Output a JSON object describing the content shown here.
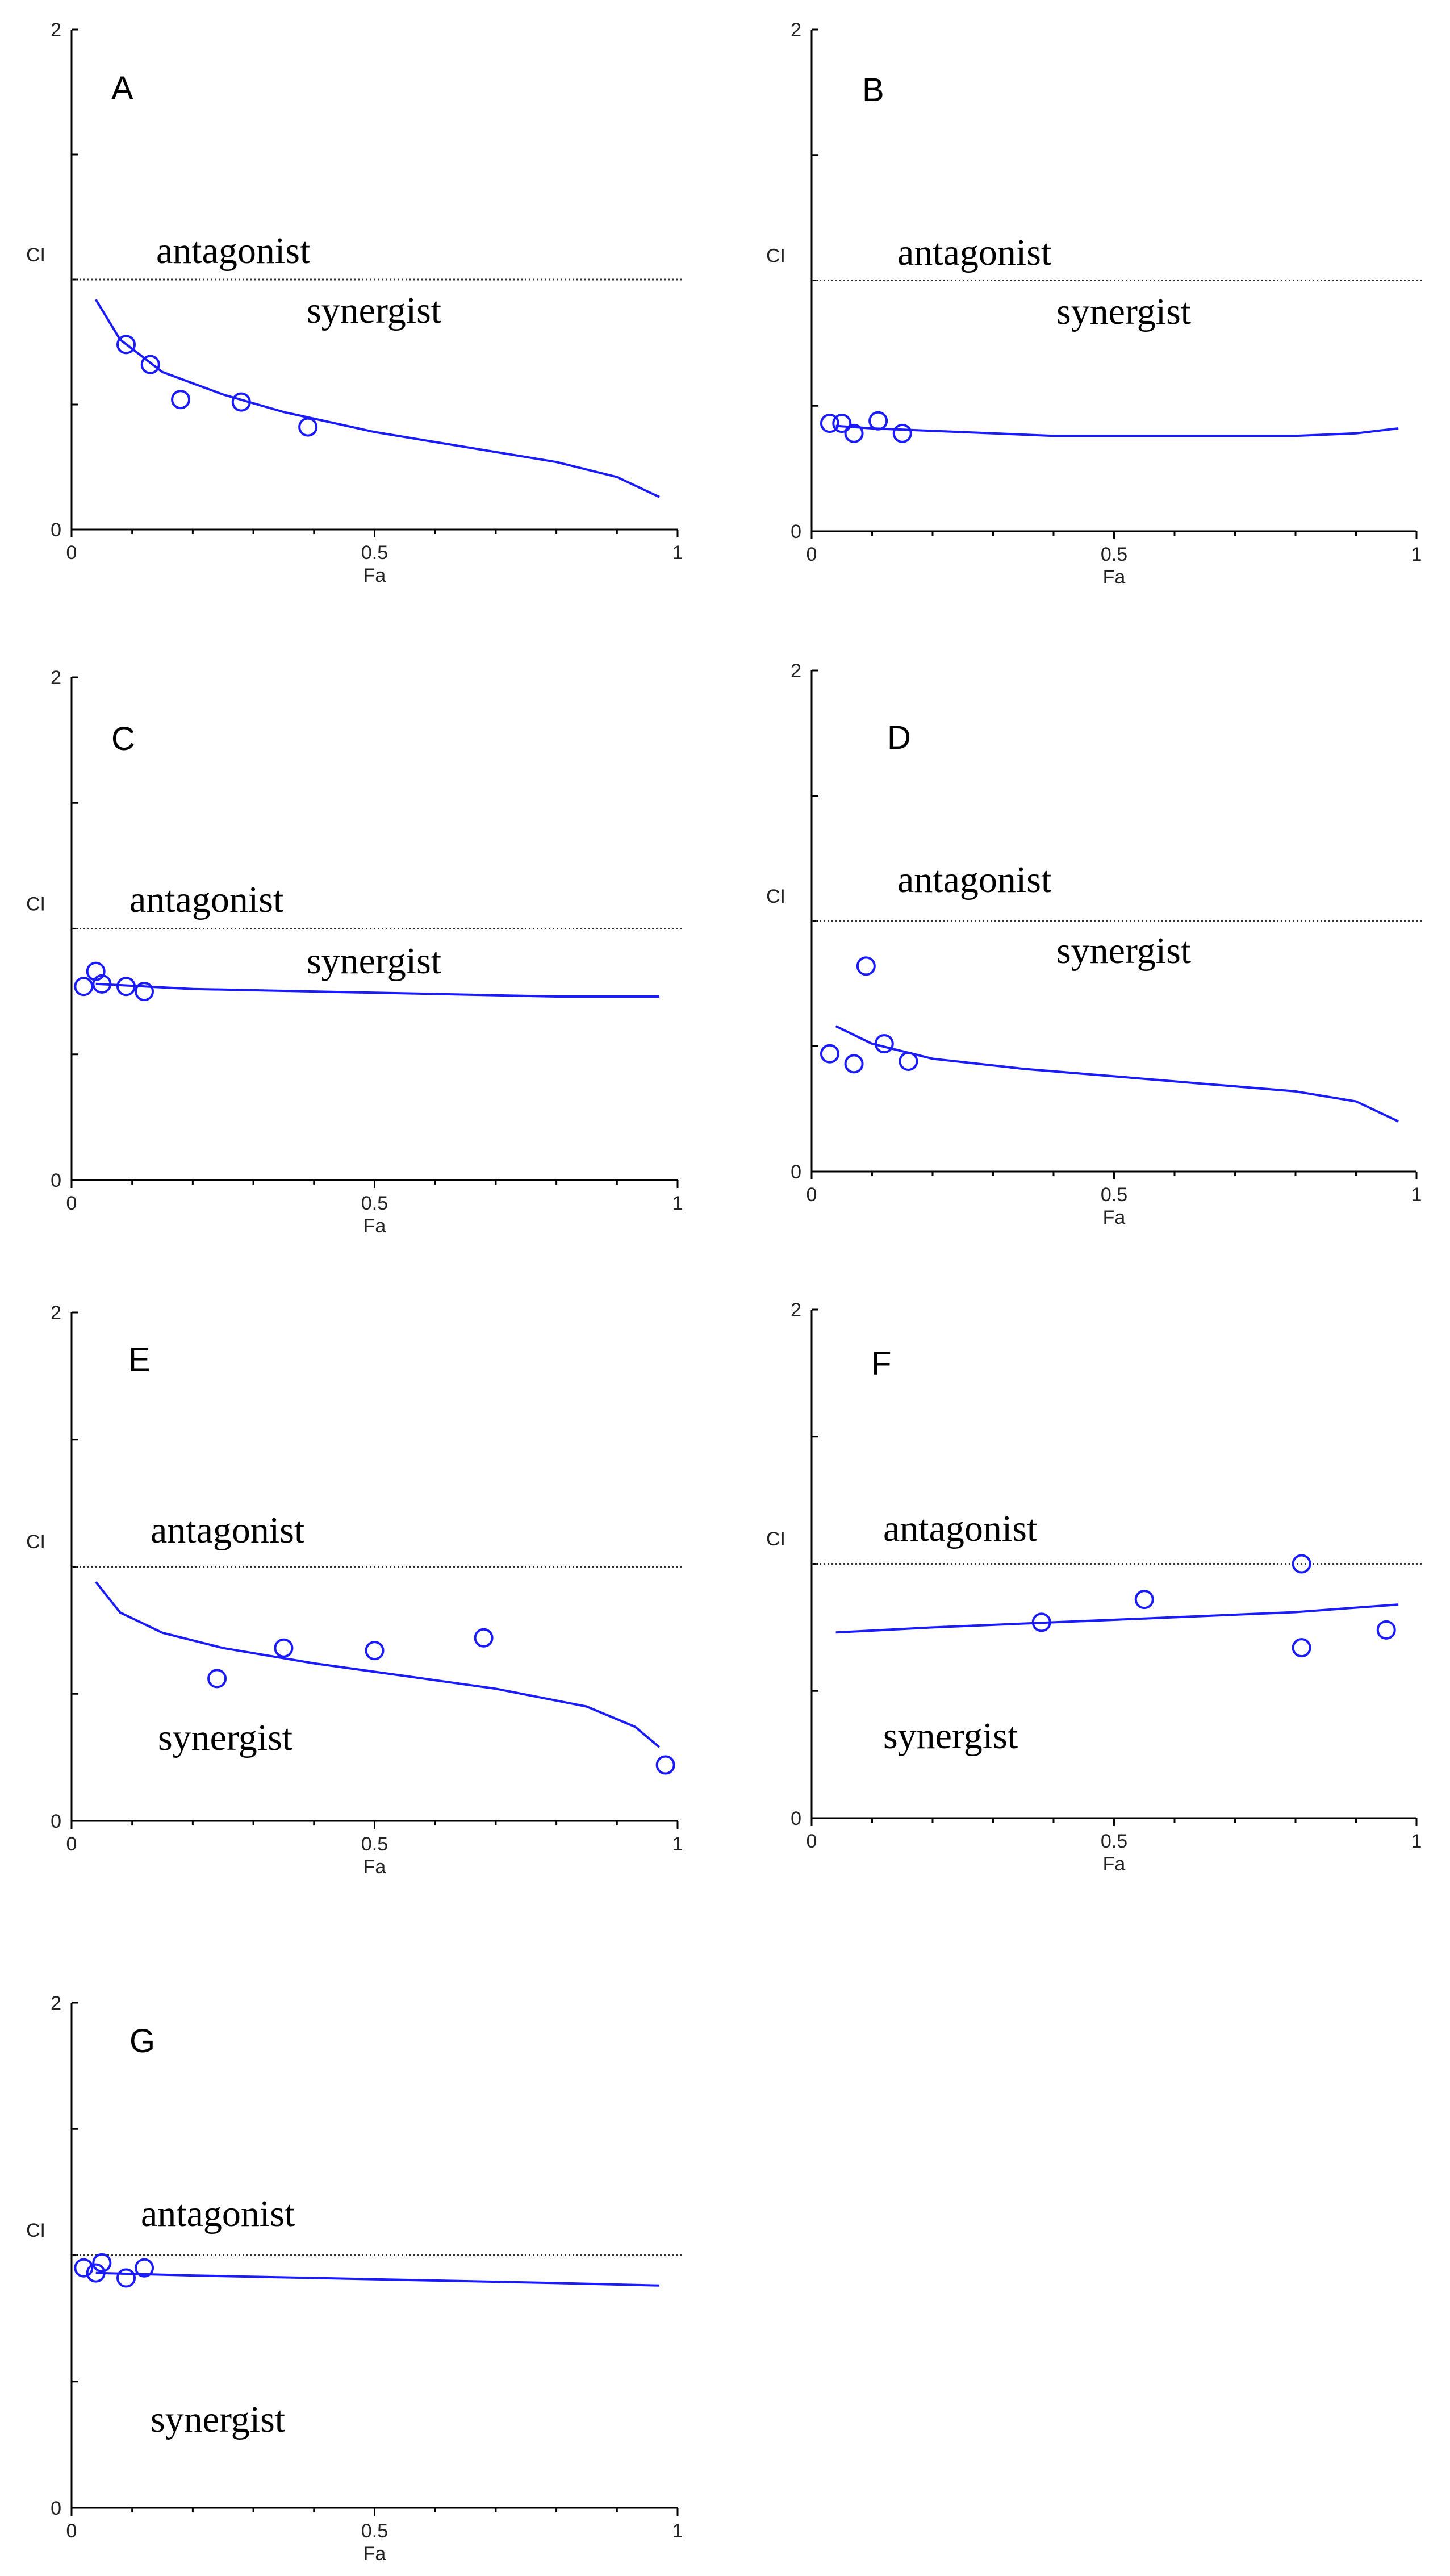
{
  "colors": {
    "curve": "#1a1aff",
    "axis": "#000000",
    "reference_line": "#333333"
  },
  "chart_data": [
    {
      "id": "A",
      "type": "scatter",
      "panel_label": "A",
      "xlabel": "Fa",
      "ylabel": "CI",
      "xlim": [
        0,
        1
      ],
      "ylim": [
        0,
        2
      ],
      "x_tick_labels": [
        "0",
        "0.5",
        "1"
      ],
      "y_tick_labels": [
        "0",
        "2"
      ],
      "reference_line_y": 1,
      "above_label": "antagonist",
      "below_label": "synergist",
      "points": [
        [
          0.09,
          0.74
        ],
        [
          0.13,
          0.66
        ],
        [
          0.18,
          0.52
        ],
        [
          0.28,
          0.51
        ],
        [
          0.39,
          0.41
        ]
      ],
      "curve": [
        [
          0.04,
          0.92
        ],
        [
          0.08,
          0.76
        ],
        [
          0.15,
          0.63
        ],
        [
          0.25,
          0.54
        ],
        [
          0.35,
          0.47
        ],
        [
          0.5,
          0.39
        ],
        [
          0.65,
          0.33
        ],
        [
          0.8,
          0.27
        ],
        [
          0.9,
          0.21
        ],
        [
          0.97,
          0.13
        ]
      ]
    },
    {
      "id": "B",
      "type": "scatter",
      "panel_label": "B",
      "xlabel": "Fa",
      "ylabel": "CI",
      "xlim": [
        0,
        1
      ],
      "ylim": [
        0,
        2
      ],
      "x_tick_labels": [
        "0",
        "0.5",
        "1"
      ],
      "y_tick_labels": [
        "0",
        "2"
      ],
      "reference_line_y": 1,
      "above_label": "antagonist",
      "below_label": "synergist",
      "points": [
        [
          0.03,
          0.43
        ],
        [
          0.05,
          0.43
        ],
        [
          0.07,
          0.39
        ],
        [
          0.11,
          0.44
        ],
        [
          0.15,
          0.39
        ]
      ],
      "curve": [
        [
          0.04,
          0.42
        ],
        [
          0.1,
          0.41
        ],
        [
          0.2,
          0.4
        ],
        [
          0.4,
          0.38
        ],
        [
          0.6,
          0.38
        ],
        [
          0.8,
          0.38
        ],
        [
          0.9,
          0.39
        ],
        [
          0.97,
          0.41
        ]
      ]
    },
    {
      "id": "C",
      "type": "scatter",
      "panel_label": "C",
      "xlabel": "Fa",
      "ylabel": "CI",
      "xlim": [
        0,
        1
      ],
      "ylim": [
        0,
        2
      ],
      "x_tick_labels": [
        "0",
        "0.5",
        "1"
      ],
      "y_tick_labels": [
        "0",
        "2"
      ],
      "reference_line_y": 1,
      "above_label": "antagonist",
      "below_label": "synergist",
      "points": [
        [
          0.02,
          0.77
        ],
        [
          0.04,
          0.83
        ],
        [
          0.05,
          0.78
        ],
        [
          0.09,
          0.77
        ],
        [
          0.12,
          0.75
        ]
      ],
      "curve": [
        [
          0.04,
          0.78
        ],
        [
          0.2,
          0.76
        ],
        [
          0.4,
          0.75
        ],
        [
          0.6,
          0.74
        ],
        [
          0.8,
          0.73
        ],
        [
          0.97,
          0.73
        ]
      ]
    },
    {
      "id": "D",
      "type": "scatter",
      "panel_label": "D",
      "xlabel": "Fa",
      "ylabel": "CI",
      "xlim": [
        0,
        1
      ],
      "ylim": [
        0,
        2
      ],
      "x_tick_labels": [
        "0",
        "0.5",
        "1"
      ],
      "y_tick_labels": [
        "0",
        "2"
      ],
      "reference_line_y": 1,
      "above_label": "antagonist",
      "below_label": "synergist",
      "points": [
        [
          0.09,
          0.82
        ],
        [
          0.03,
          0.47
        ],
        [
          0.07,
          0.43
        ],
        [
          0.12,
          0.51
        ],
        [
          0.16,
          0.44
        ]
      ],
      "curve": [
        [
          0.04,
          0.58
        ],
        [
          0.1,
          0.51
        ],
        [
          0.2,
          0.45
        ],
        [
          0.35,
          0.41
        ],
        [
          0.5,
          0.38
        ],
        [
          0.65,
          0.35
        ],
        [
          0.8,
          0.32
        ],
        [
          0.9,
          0.28
        ],
        [
          0.97,
          0.2
        ]
      ]
    },
    {
      "id": "E",
      "type": "scatter",
      "panel_label": "E",
      "xlabel": "Fa",
      "ylabel": "CI",
      "xlim": [
        0,
        1
      ],
      "ylim": [
        0,
        2
      ],
      "x_tick_labels": [
        "0",
        "0.5",
        "1"
      ],
      "y_tick_labels": [
        "0",
        "2"
      ],
      "reference_line_y": 1,
      "above_label": "antagonist",
      "below_label": "synergist",
      "points": [
        [
          0.24,
          0.56
        ],
        [
          0.35,
          0.68
        ],
        [
          0.5,
          0.67
        ],
        [
          0.68,
          0.72
        ],
        [
          0.98,
          0.22
        ]
      ],
      "curve": [
        [
          0.04,
          0.94
        ],
        [
          0.08,
          0.82
        ],
        [
          0.15,
          0.74
        ],
        [
          0.25,
          0.68
        ],
        [
          0.4,
          0.62
        ],
        [
          0.55,
          0.57
        ],
        [
          0.7,
          0.52
        ],
        [
          0.85,
          0.45
        ],
        [
          0.93,
          0.37
        ],
        [
          0.97,
          0.29
        ]
      ]
    },
    {
      "id": "F",
      "type": "scatter",
      "panel_label": "F",
      "xlabel": "Fa",
      "ylabel": "CI",
      "xlim": [
        0,
        1
      ],
      "ylim": [
        0,
        2
      ],
      "x_tick_labels": [
        "0",
        "0.5",
        "1"
      ],
      "y_tick_labels": [
        "0",
        "2"
      ],
      "reference_line_y": 1,
      "above_label": "antagonist",
      "below_label": "synergist",
      "points": [
        [
          0.38,
          0.77
        ],
        [
          0.55,
          0.86
        ],
        [
          0.81,
          1.0
        ],
        [
          0.81,
          0.67
        ],
        [
          0.95,
          0.74
        ]
      ],
      "curve": [
        [
          0.04,
          0.73
        ],
        [
          0.2,
          0.75
        ],
        [
          0.4,
          0.77
        ],
        [
          0.6,
          0.79
        ],
        [
          0.8,
          0.81
        ],
        [
          0.97,
          0.84
        ]
      ]
    },
    {
      "id": "G",
      "type": "scatter",
      "panel_label": "G",
      "xlabel": "Fa",
      "ylabel": "CI",
      "xlim": [
        0,
        1
      ],
      "ylim": [
        0,
        2
      ],
      "x_tick_labels": [
        "0",
        "0.5",
        "1"
      ],
      "y_tick_labels": [
        "0",
        "2"
      ],
      "reference_line_y": 1,
      "above_label": "antagonist",
      "below_label": "synergist",
      "points": [
        [
          0.02,
          0.95
        ],
        [
          0.04,
          0.93
        ],
        [
          0.05,
          0.97
        ],
        [
          0.09,
          0.91
        ],
        [
          0.12,
          0.95
        ]
      ],
      "curve": [
        [
          0.04,
          0.93
        ],
        [
          0.2,
          0.92
        ],
        [
          0.4,
          0.91
        ],
        [
          0.6,
          0.9
        ],
        [
          0.8,
          0.89
        ],
        [
          0.97,
          0.88
        ]
      ]
    }
  ]
}
